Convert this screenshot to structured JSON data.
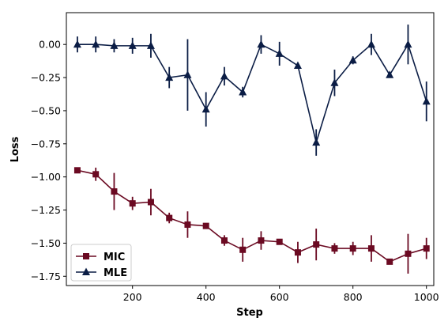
{
  "chart_data": {
    "type": "line",
    "title": "",
    "xlabel": "Step",
    "ylabel": "Loss",
    "xlim": [
      20,
      1020
    ],
    "ylim": [
      -1.82,
      0.24
    ],
    "x_ticks": [
      200,
      400,
      600,
      800,
      1000
    ],
    "x_tick_labels": [
      "200",
      "400",
      "600",
      "800",
      "1000"
    ],
    "y_ticks": [
      0.0,
      -0.25,
      -0.5,
      -0.75,
      -1.0,
      -1.25,
      -1.5,
      -1.75
    ],
    "y_tick_labels": [
      "0.00",
      "−0.25",
      "−0.50",
      "−0.75",
      "−1.00",
      "−1.25",
      "−1.50",
      "−1.75"
    ],
    "grid": false,
    "legend_position": "lower-left",
    "x": [
      50,
      100,
      150,
      200,
      250,
      300,
      350,
      400,
      450,
      500,
      550,
      600,
      650,
      700,
      750,
      800,
      850,
      900,
      950,
      1000
    ],
    "series": [
      {
        "name": "MIC",
        "color": "#6b0a22",
        "marker": "square",
        "values": [
          -0.95,
          -0.98,
          -1.11,
          -1.2,
          -1.19,
          -1.31,
          -1.36,
          -1.37,
          -1.48,
          -1.55,
          -1.48,
          -1.49,
          -1.57,
          -1.51,
          -1.54,
          -1.54,
          -1.54,
          -1.64,
          -1.58,
          -1.54
        ],
        "error": [
          0.0,
          0.05,
          0.14,
          0.05,
          0.1,
          0.04,
          0.1,
          0.0,
          0.04,
          0.09,
          0.07,
          0.0,
          0.08,
          0.12,
          0.04,
          0.05,
          0.1,
          0.02,
          0.15,
          0.08
        ]
      },
      {
        "name": "MLE",
        "color": "#0b1d45",
        "marker": "triangle",
        "values": [
          0.0,
          0.0,
          -0.01,
          -0.01,
          -0.01,
          -0.25,
          -0.23,
          -0.49,
          -0.24,
          -0.36,
          0.0,
          -0.07,
          -0.16,
          -0.74,
          -0.29,
          -0.12,
          0.0,
          -0.23,
          0.0,
          -0.43
        ],
        "error": [
          0.06,
          0.06,
          0.05,
          0.06,
          0.09,
          0.08,
          0.27,
          0.13,
          0.07,
          0.04,
          0.07,
          0.09,
          0.0,
          0.1,
          0.1,
          0.03,
          0.08,
          0.02,
          0.15,
          0.15
        ]
      }
    ]
  }
}
